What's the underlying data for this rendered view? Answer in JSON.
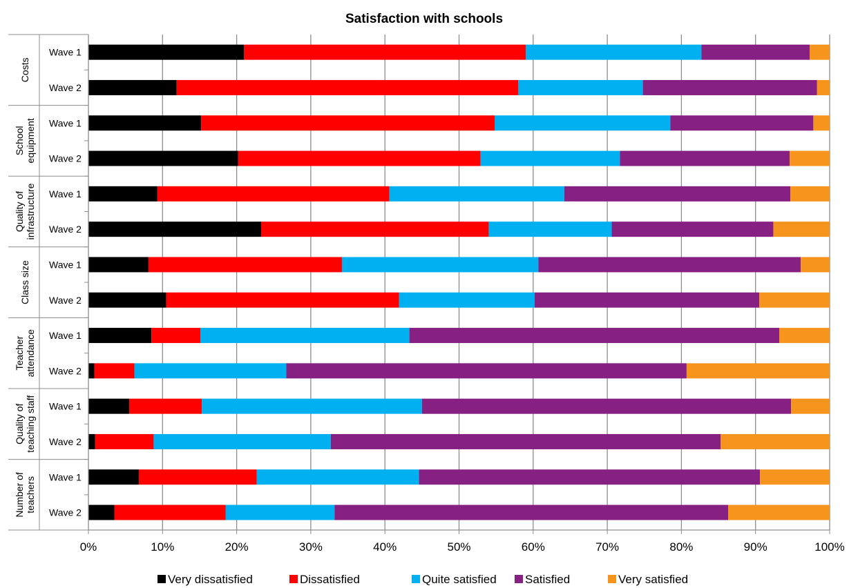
{
  "chart_data": {
    "type": "bar",
    "orientation": "horizontal",
    "stacked": "percent",
    "title": "Satisfaction with schools",
    "xlabel": "",
    "ylabel": "",
    "xlim": [
      0,
      100
    ],
    "x_ticks": [
      "0%",
      "10%",
      "20%",
      "30%",
      "40%",
      "50%",
      "60%",
      "70%",
      "80%",
      "90%",
      "100%"
    ],
    "grid": "vertical",
    "legend_position": "bottom",
    "groups": [
      {
        "label": "Costs",
        "label_lines": [
          "Costs"
        ],
        "rows": [
          {
            "label": "Wave 1",
            "values": [
              21.0,
              38.0,
              23.7,
              14.6,
              2.7
            ]
          },
          {
            "label": "Wave 2",
            "values": [
              11.9,
              46.1,
              16.8,
              23.5,
              1.7
            ]
          }
        ]
      },
      {
        "label": "School equipment",
        "label_lines": [
          "School",
          "equipment"
        ],
        "rows": [
          {
            "label": "Wave 1",
            "values": [
              15.2,
              39.6,
              23.7,
              19.3,
              2.2
            ]
          },
          {
            "label": "Wave 2",
            "values": [
              20.2,
              32.7,
              18.8,
              22.9,
              5.4
            ]
          }
        ]
      },
      {
        "label": "Quality of infrastructure",
        "label_lines": [
          "Quality of",
          "infrastructure"
        ],
        "rows": [
          {
            "label": "Wave 1",
            "values": [
              9.3,
              31.3,
              23.6,
              30.5,
              5.3
            ]
          },
          {
            "label": "Wave 2",
            "values": [
              23.3,
              30.7,
              16.6,
              21.8,
              7.6
            ]
          }
        ]
      },
      {
        "label": "Class size",
        "label_lines": [
          "Class size"
        ],
        "rows": [
          {
            "label": "Wave 1",
            "values": [
              8.1,
              26.1,
              26.5,
              35.4,
              3.9
            ]
          },
          {
            "label": "Wave 2",
            "values": [
              10.5,
              31.4,
              18.3,
              30.3,
              9.5
            ]
          }
        ]
      },
      {
        "label": "Teacher attendance",
        "label_lines": [
          "Teacher",
          "attendance"
        ],
        "rows": [
          {
            "label": "Wave 1",
            "values": [
              8.5,
              6.6,
              28.2,
              49.9,
              6.8
            ]
          },
          {
            "label": "Wave 2",
            "values": [
              0.8,
              5.4,
              20.5,
              54.0,
              19.3
            ]
          }
        ]
      },
      {
        "label": "Quality of teaching staff",
        "label_lines": [
          "Quality of",
          "teaching staff"
        ],
        "rows": [
          {
            "label": "Wave 1",
            "values": [
              5.5,
              9.8,
              29.7,
              49.8,
              5.2
            ]
          },
          {
            "label": "Wave 2",
            "values": [
              0.9,
              7.9,
              23.9,
              52.6,
              14.7
            ]
          }
        ]
      },
      {
        "label": "Number of teachers",
        "label_lines": [
          "Number of",
          "teachers"
        ],
        "rows": [
          {
            "label": "Wave 1",
            "values": [
              6.8,
              15.9,
              21.9,
              46.0,
              9.4
            ]
          },
          {
            "label": "Wave 2",
            "values": [
              3.5,
              15.0,
              14.7,
              53.1,
              13.7
            ]
          }
        ]
      }
    ],
    "series": [
      {
        "name": "Very dissatisfied",
        "color": "#000000"
      },
      {
        "name": "Dissatisfied",
        "color": "#ff0000"
      },
      {
        "name": "Quite satisfied",
        "color": "#00b0f0"
      },
      {
        "name": "Satisfied",
        "color": "#862082"
      },
      {
        "name": "Very satisfied",
        "color": "#f7941d"
      }
    ]
  }
}
